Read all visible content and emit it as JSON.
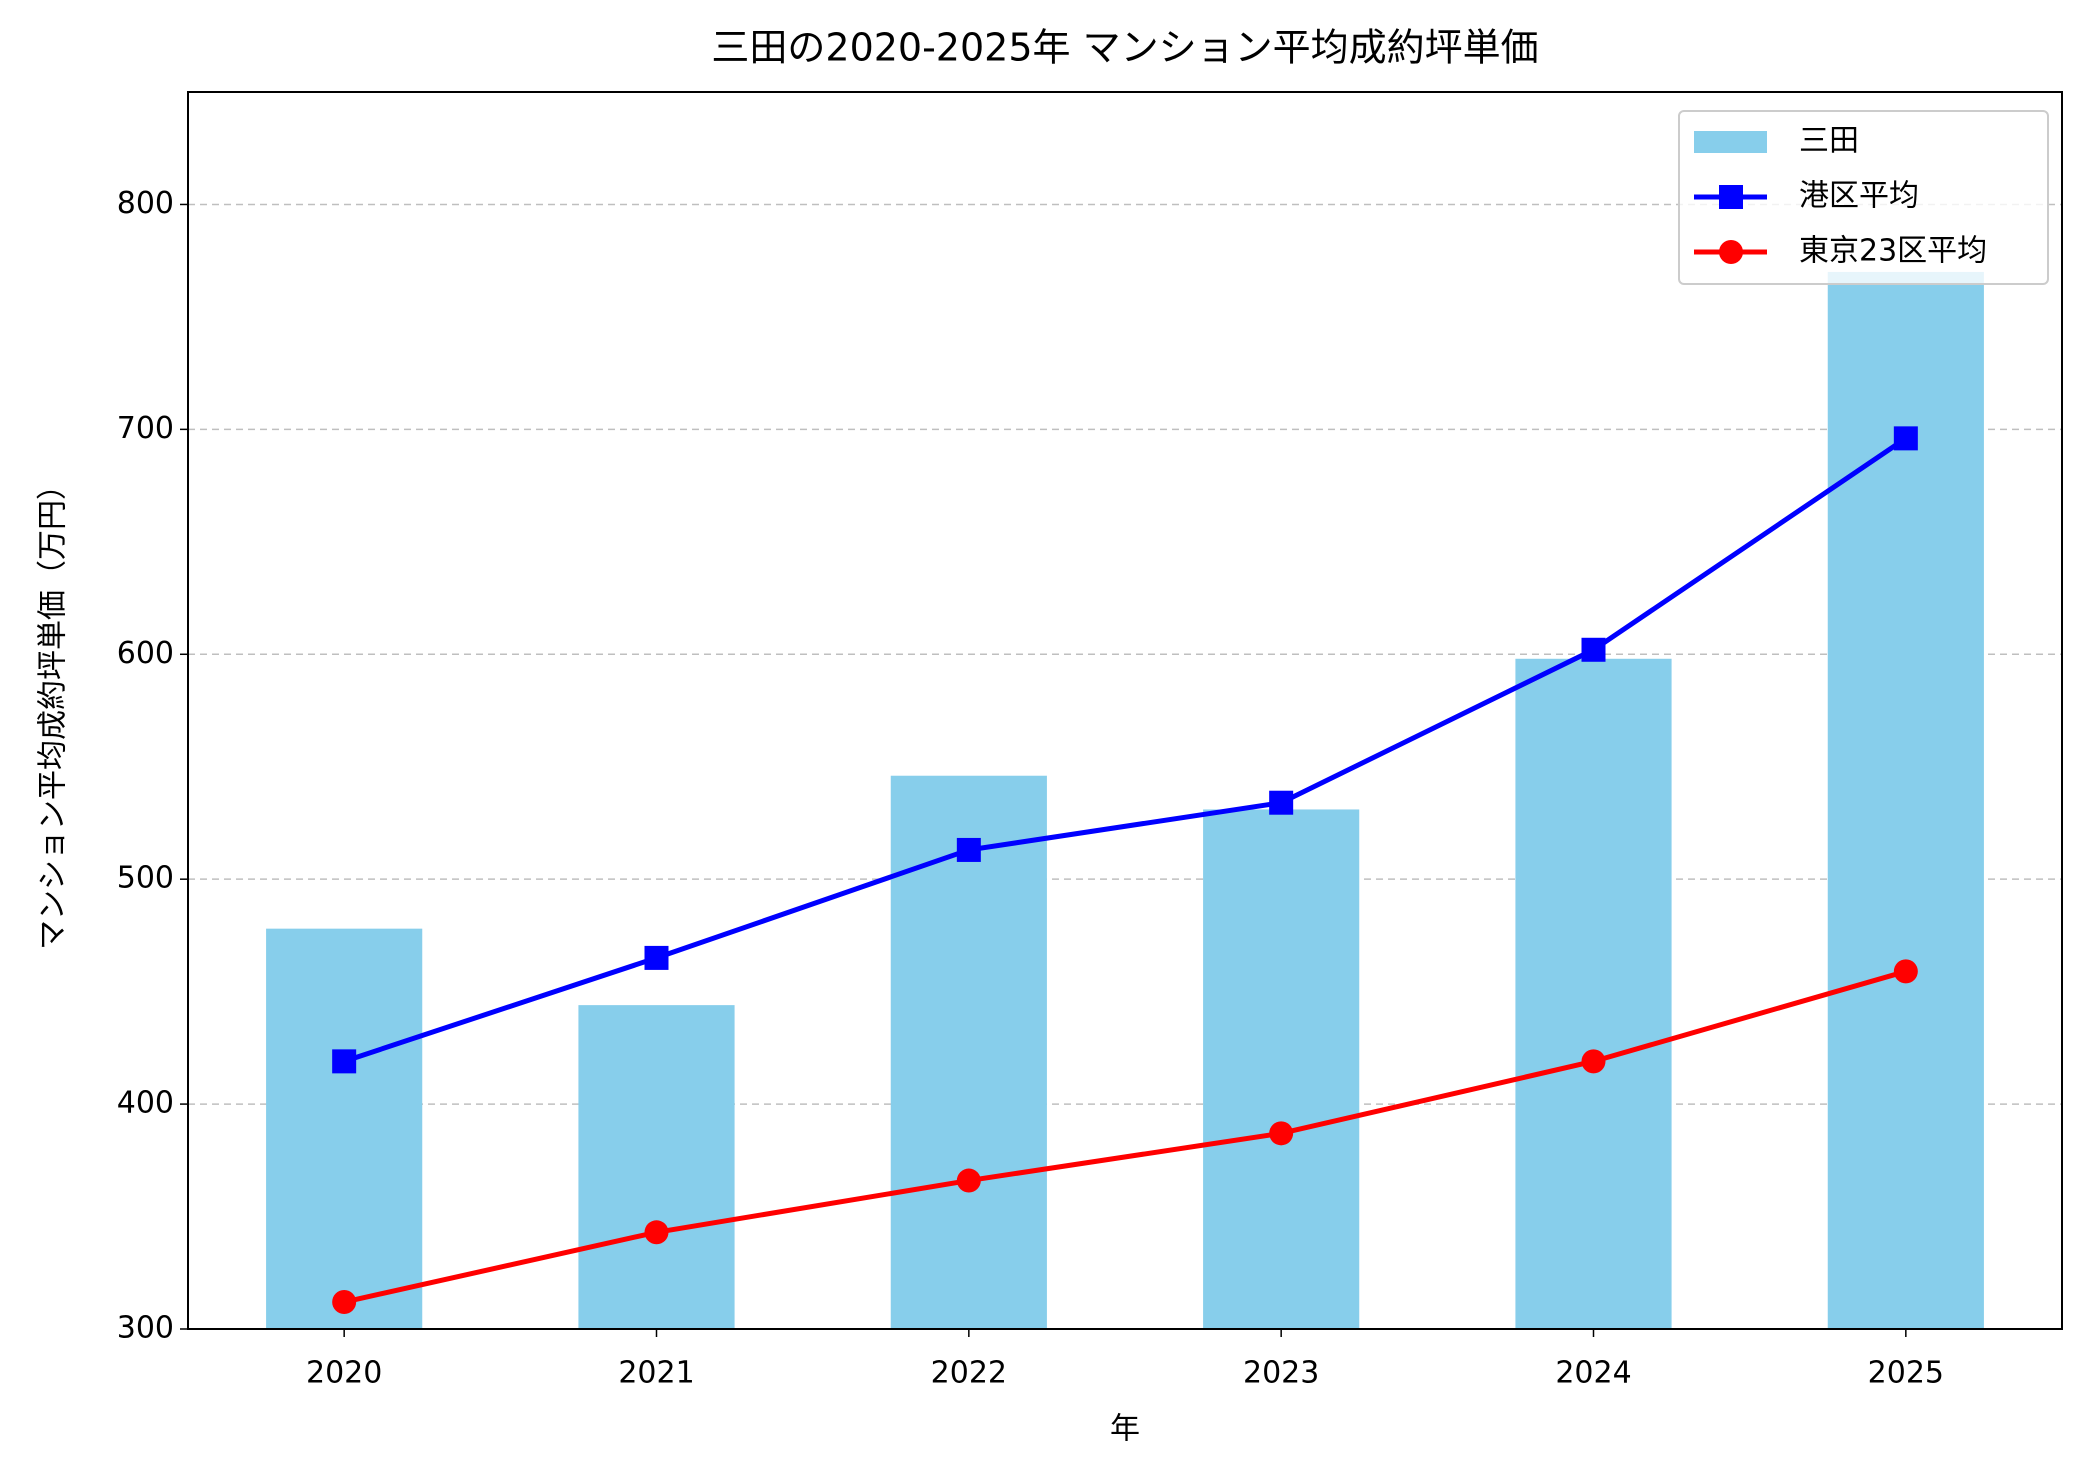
{
  "chart_data": {
    "type": "bar",
    "title": "三田の2020-2025年 マンション平均成約坪単価",
    "x_label": "年",
    "y_label": "マンション平均成約坪単価（万円）",
    "categories": [
      "2020",
      "2021",
      "2022",
      "2023",
      "2024",
      "2025"
    ],
    "series": [
      {
        "name": "三田",
        "type": "bar",
        "color": "#87ceeb",
        "values": [
          478,
          444,
          546,
          531,
          598,
          770
        ]
      },
      {
        "name": "港区平均",
        "type": "line",
        "marker": "square",
        "color": "#0000ff",
        "values": [
          419,
          465,
          513,
          534,
          602,
          696
        ]
      },
      {
        "name": "東京23区平均",
        "type": "line",
        "marker": "circle",
        "color": "#ff0000",
        "values": [
          312,
          343,
          366,
          387,
          419,
          459
        ]
      }
    ],
    "ylim": [
      300,
      850
    ],
    "yticks": [
      300,
      400,
      500,
      600,
      700,
      800
    ],
    "grid": true,
    "legend": "upper right"
  }
}
